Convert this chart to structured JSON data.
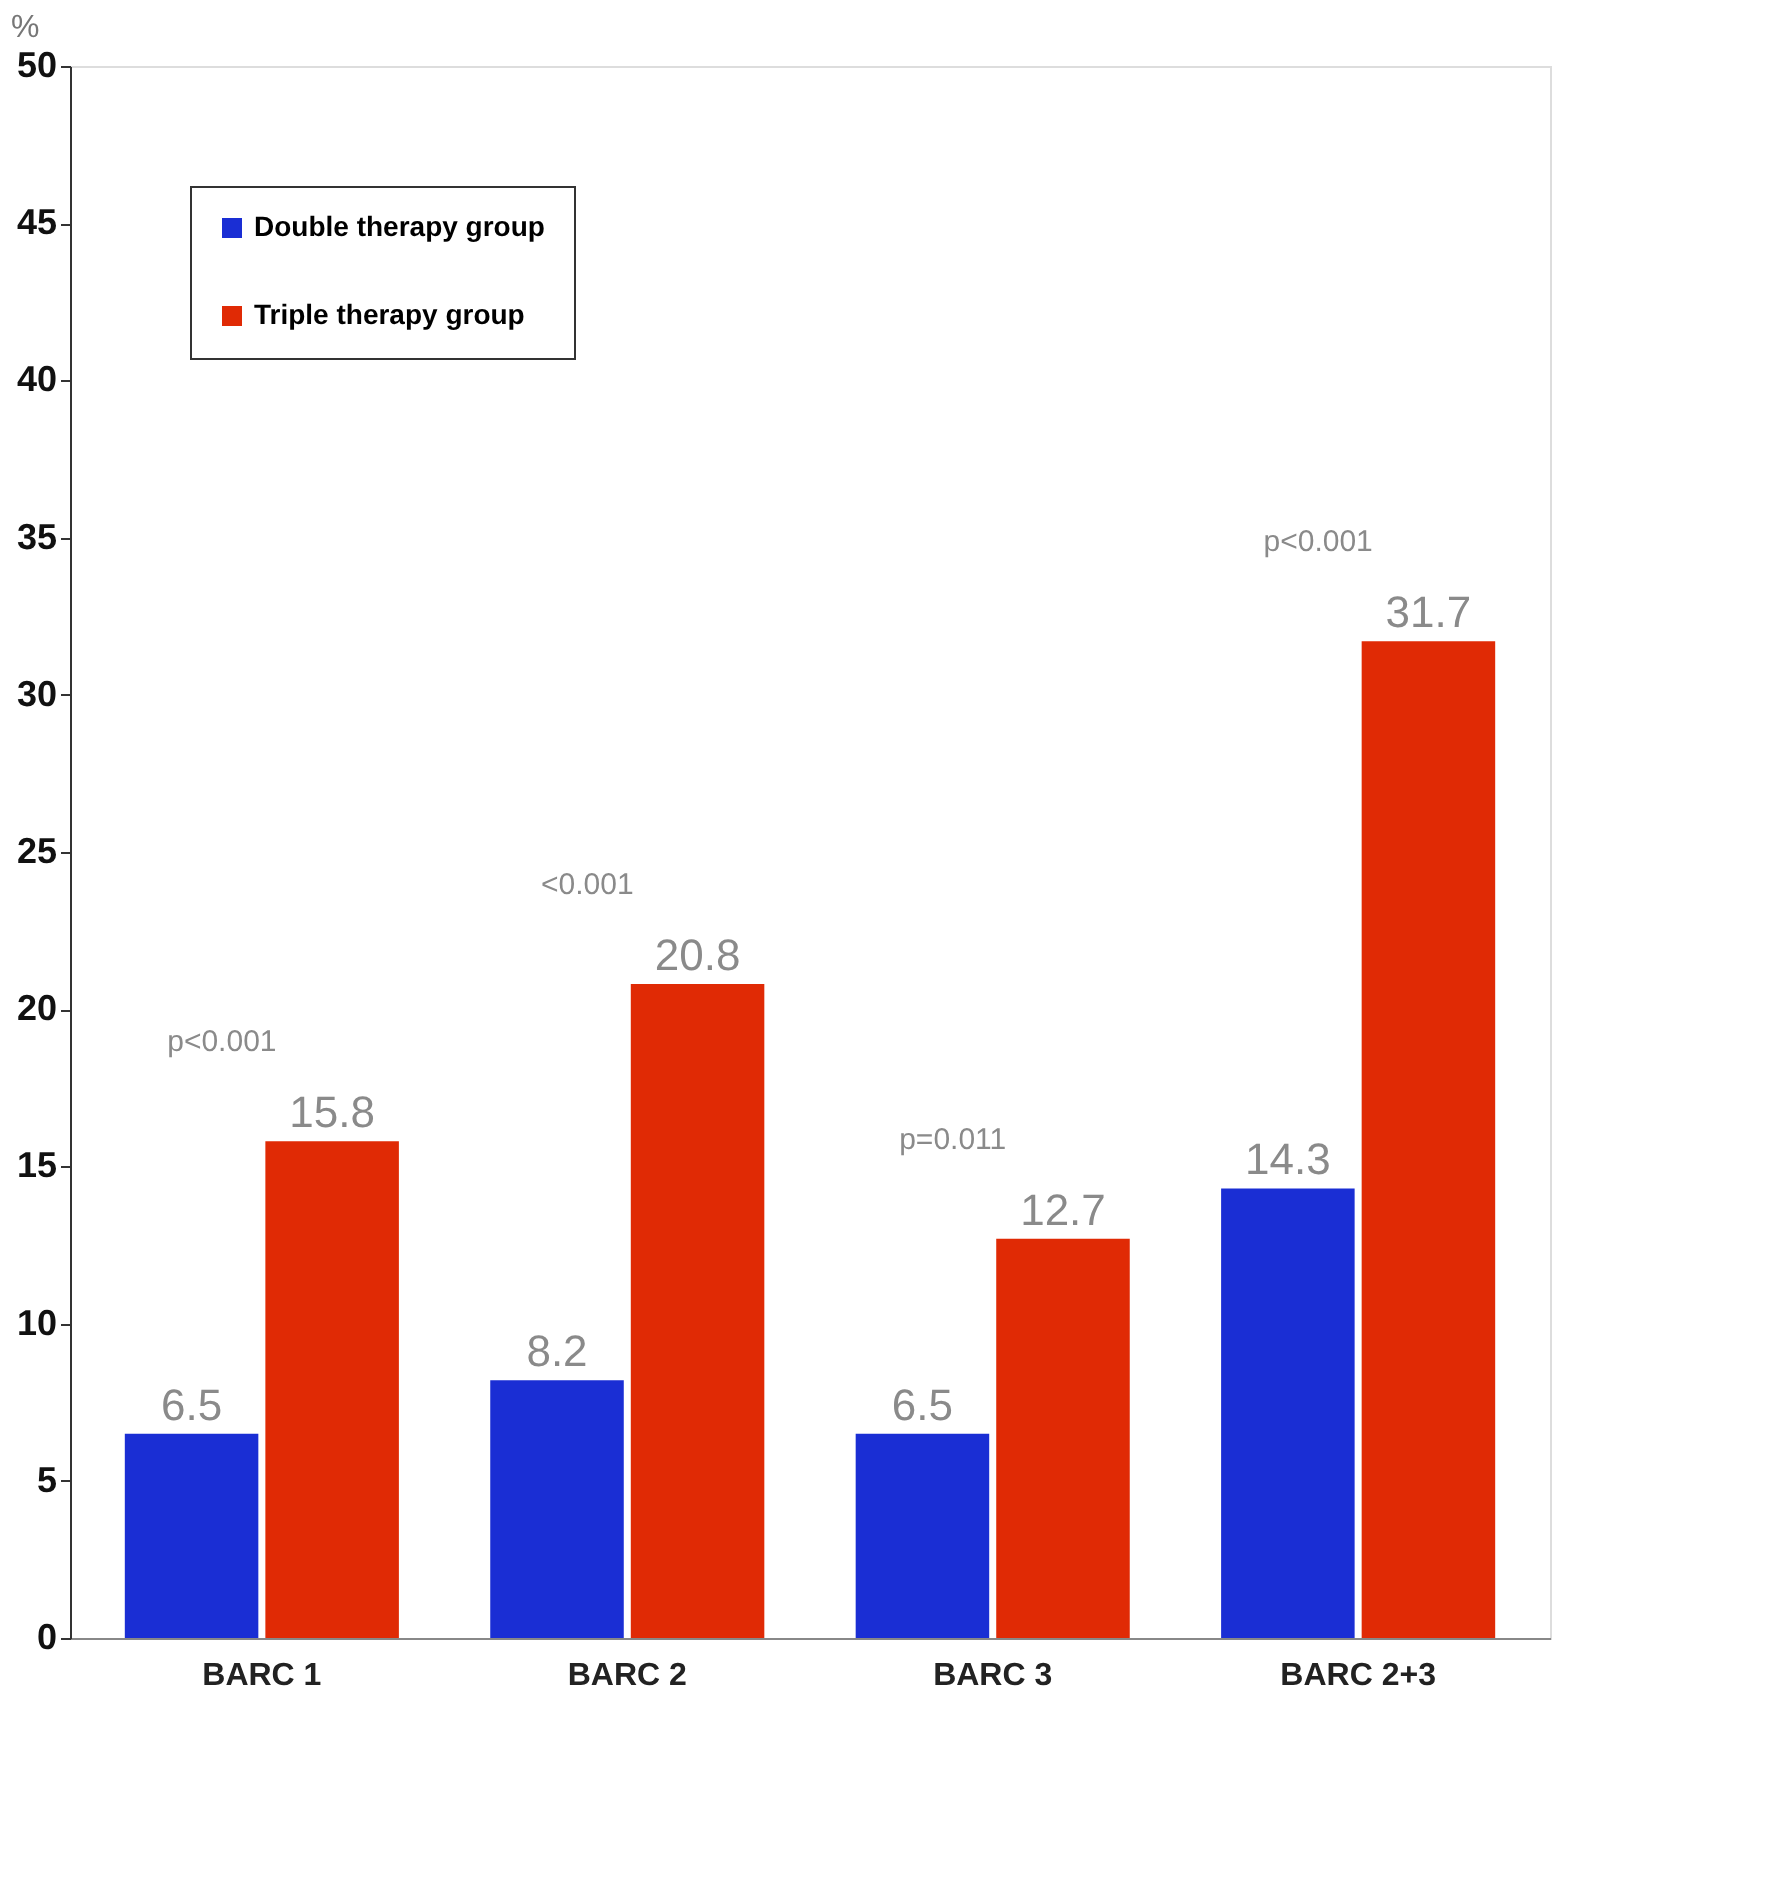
{
  "chart_data": {
    "type": "bar",
    "ylabel": "%",
    "categories": [
      "BARC 1",
      "BARC 2",
      "BARC 3",
      "BARC 2+3"
    ],
    "series": [
      {
        "name": "Double therapy group",
        "color": "#1a2ed4",
        "values": [
          6.5,
          8.2,
          6.5,
          14.3
        ]
      },
      {
        "name": "Triple therapy group",
        "color": "#e02a05",
        "values": [
          15.8,
          20.8,
          12.7,
          31.7
        ]
      }
    ],
    "ylim": [
      0,
      50
    ],
    "yticks": [
      0,
      5,
      10,
      15,
      20,
      25,
      30,
      35,
      40,
      45,
      50
    ],
    "data_labels": true,
    "grid": false,
    "legend": "top left",
    "annotations": [
      "p<0.001",
      "<0.001",
      "p=0.011",
      "p<0.001"
    ]
  }
}
